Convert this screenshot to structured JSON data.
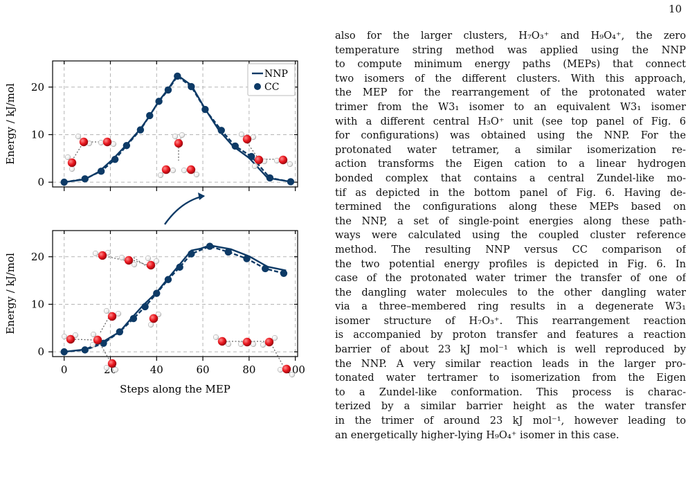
{
  "page": {
    "number": "10"
  },
  "chart_data": [
    {
      "type": "line",
      "title": "",
      "xlabel": "",
      "ylabel": "Energy / kJ/mol",
      "xlim": [
        -5,
        101
      ],
      "ylim": [
        -1,
        25.5
      ],
      "xticks": [
        0,
        20,
        40,
        60,
        80,
        100
      ],
      "yticks": [
        0,
        10,
        20
      ],
      "xtick_labels_shown": false,
      "grid": true,
      "legend": {
        "position": "top-right",
        "entries": [
          "NNP",
          "CC"
        ]
      },
      "series": [
        {
          "name": "NNP",
          "style": "solid line",
          "x": [
            0,
            9,
            15,
            21,
            27,
            33,
            37,
            41,
            45,
            49,
            55,
            61,
            67,
            73,
            80,
            88,
            98
          ],
          "y": [
            0,
            0.6,
            2.2,
            4.8,
            7.9,
            11.2,
            14.0,
            17.1,
            19.6,
            22.5,
            20.4,
            15.4,
            10.9,
            7.6,
            5.1,
            0.9,
            0.1
          ]
        },
        {
          "name": "CC",
          "style": "dashed line with circle markers",
          "x": [
            0,
            9,
            16,
            22,
            27,
            33,
            37,
            41,
            45,
            49,
            55,
            61,
            68,
            74,
            81,
            89,
            98
          ],
          "y": [
            0,
            0.7,
            2.3,
            4.8,
            7.7,
            11.0,
            14.0,
            17.0,
            19.4,
            22.3,
            20.1,
            15.3,
            10.9,
            7.6,
            5.4,
            0.9,
            0.1
          ]
        }
      ]
    },
    {
      "type": "line",
      "title": "",
      "xlabel": "Steps along the MEP",
      "ylabel": "Energy / kJ/mol",
      "xlim": [
        -5,
        101
      ],
      "ylim": [
        -1,
        25.5
      ],
      "xticks": [
        0,
        20,
        40,
        60,
        80,
        100
      ],
      "yticks": [
        0,
        10,
        20
      ],
      "grid": true,
      "series": [
        {
          "name": "NNP",
          "style": "solid line",
          "x": [
            0,
            9,
            16,
            24,
            29,
            34,
            40,
            45,
            50,
            55,
            59,
            63,
            72,
            80,
            88,
            96
          ],
          "y": [
            0,
            0.5,
            1.9,
            4.2,
            7.0,
            9.7,
            12.5,
            15.5,
            18.4,
            21.3,
            21.7,
            22.4,
            21.6,
            20.1,
            17.9,
            17.1
          ]
        },
        {
          "name": "CC",
          "style": "dashed line with circle markers",
          "x": [
            0,
            9,
            17,
            24,
            30,
            35,
            40,
            45,
            50,
            55,
            63,
            71,
            79,
            87,
            95
          ],
          "y": [
            0,
            0.4,
            1.8,
            4.2,
            7.0,
            9.5,
            12.3,
            15.2,
            17.8,
            20.6,
            22.2,
            21.0,
            19.6,
            17.5,
            16.5
          ]
        }
      ]
    }
  ],
  "text": {
    "lines": [
      "also for the larger clusters, H₇O₃⁺ and H₉O₄⁺, the zero",
      "temperature string method was applied using the NNP",
      "to compute minimum energy paths (MEPs) that connect",
      "two isomers of the different clusters. With this approach,",
      "the MEP for the rearrangement of the protonated water",
      "trimer from the W3₁ isomer to an equivalent W3₁ isomer",
      "with a different central H₃O⁺ unit (see top panel of Fig. 6",
      "for configurations) was obtained using the NNP. For the",
      "protonated water tetramer, a similar isomerization re-",
      "action transforms the Eigen cation to a linear hydrogen",
      "bonded complex that contains a central Zundel-like mo-",
      "tif as depicted in the bottom panel of Fig. 6. Having de-",
      "termined the configurations along these MEPs based on",
      "the NNP, a set of single-point energies along these path-",
      "ways were calculated using the coupled cluster reference",
      "method. The resulting NNP versus CC comparison of",
      "the two potential energy profiles is depicted in Fig. 6. In",
      "case of the protonated water trimer the transfer of one of",
      "the dangling water molecules to the other dangling water",
      "via a three–membered ring results in a degenerate W3₁",
      "isomer structure of H₇O₃⁺. This rearrangement reaction",
      "is accompanied by proton transfer and features a reaction",
      "barrier of about 23 kJ mol⁻¹ which is well reproduced by",
      "the NNP. A very similar reaction leads in the larger pro-",
      "tonated water tertramer to isomerization from the Eigen",
      "to a Zundel-like conformation. This process is charac-",
      "terized by a similar barrier height as the water transfer",
      "in the trimer of around 23 kJ mol⁻¹, however leading to",
      "an energetically higher-lying H₉O₄⁺ isomer in this case."
    ]
  },
  "colors": {
    "series": "#0d3a66",
    "grid": "#b5b5b5",
    "oxygen": "#e8141c",
    "hydrogen": "#f4f4f4",
    "bond": "#777777"
  }
}
